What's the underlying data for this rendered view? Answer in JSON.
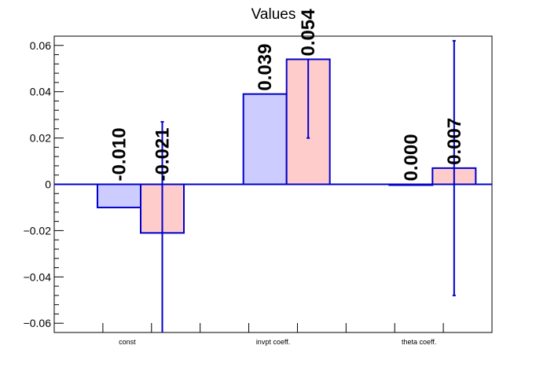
{
  "chart_data": {
    "type": "bar",
    "title": "Values",
    "categories": [
      "const",
      "invpt coeff.",
      "theta coeff."
    ],
    "ylim": [
      -0.064,
      0.064
    ],
    "yticks": [
      "0.06",
      "0.04",
      "0.02",
      "0",
      "−0.02",
      "−0.04",
      "−0.06"
    ],
    "ytick_values": [
      0.06,
      0.04,
      0.02,
      0,
      -0.02,
      -0.04,
      -0.06
    ],
    "series": [
      {
        "color": "#ccccff",
        "edge": "#0000cc",
        "values": [
          -0.01,
          0.039,
          0.0
        ],
        "labels": [
          "-0.010",
          "0.039",
          "0.000"
        ]
      },
      {
        "color": "#ffcccc",
        "edge": "#0000cc",
        "values": [
          -0.021,
          0.054,
          0.007
        ],
        "labels": [
          "-0.021",
          "0.054",
          "0.007"
        ],
        "error_low": [
          -0.064,
          0.02,
          -0.048
        ],
        "error_high": [
          0.027,
          0.054,
          0.062
        ]
      }
    ]
  }
}
